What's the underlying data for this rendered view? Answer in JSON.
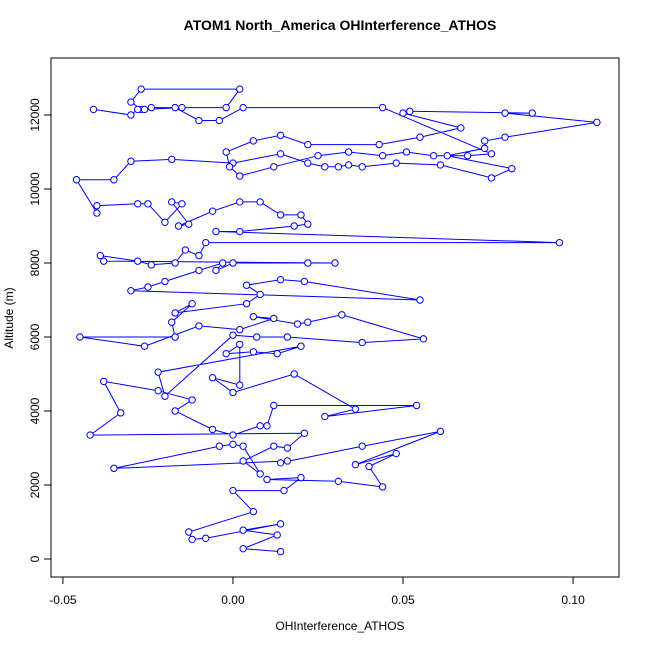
{
  "chart_data": {
    "type": "line",
    "markers": true,
    "title": "ATOM1 North_America OHInterference_ATHOS",
    "x_label": "OHInterference_ATHOS",
    "y_label": "Altitude (m)",
    "color": "#0000ff",
    "xlim": [
      -0.0535,
      0.1135
    ],
    "ylim": [
      -486,
      13540
    ],
    "xticks": [
      -0.05,
      {
        "value": 0,
        "label": "0.00"
      },
      0.05,
      {
        "value": 0.1,
        "label": "0.10"
      }
    ],
    "yticks": [
      0,
      2000,
      4000,
      6000,
      8000,
      10000,
      12000
    ],
    "x": [
      0.014,
      0.003,
      0.013,
      0.003,
      0.014,
      -0.008,
      -0.012,
      -0.013,
      0.006,
      0.0,
      0.015,
      0.02,
      0.01,
      0.031,
      0.044,
      0.04,
      0.048,
      0.036,
      0.061,
      0.038,
      0.014,
      0.016,
      -0.035,
      -0.004,
      0.0,
      0.003,
      0.008,
      0.003,
      0.012,
      0.016,
      0.021,
      -0.042,
      -0.033,
      -0.038,
      -0.022,
      -0.012,
      -0.017,
      -0.006,
      0.0,
      0.008,
      0.01,
      0.012,
      0.054,
      0.027,
      0.036,
      0.018,
      0.0,
      -0.006,
      0.002,
      0.002,
      -0.002,
      0.006,
      0.013,
      0.02,
      -0.022,
      -0.02,
      0.0,
      0.007,
      0.016,
      0.038,
      0.056,
      0.032,
      0.022,
      0.019,
      0.006,
      0.012,
      0.002,
      -0.01,
      -0.026,
      -0.045,
      -0.017,
      -0.018,
      -0.012,
      -0.017,
      0.004,
      0.008,
      0.004,
      0.014,
      0.021,
      0.055,
      -0.03,
      -0.025,
      -0.02,
      -0.01,
      -0.003,
      -0.005,
      0.0,
      0.022,
      0.03,
      -0.038,
      -0.039,
      -0.028,
      -0.024,
      -0.017,
      -0.014,
      -0.01,
      -0.008,
      0.096,
      -0.005,
      0.002,
      0.018,
      0.022,
      0.02,
      0.014,
      0.008,
      0.002,
      -0.006,
      -0.016,
      -0.013,
      -0.018,
      -0.015,
      -0.02,
      -0.025,
      -0.028,
      -0.04,
      -0.04,
      -0.046,
      -0.035,
      -0.03,
      -0.018,
      0.0,
      0.014,
      0.022,
      0.027,
      0.031,
      0.034,
      0.038,
      0.048,
      0.061,
      0.076,
      0.082,
      0.063,
      0.074,
      0.074,
      0.08,
      0.107,
      0.08,
      0.088,
      0.052,
      0.05,
      0.067,
      0.055,
      0.043,
      0.022,
      0.014,
      0.006,
      -0.002,
      -0.001,
      0.002,
      0.012,
      0.025,
      0.034,
      0.044,
      0.051,
      0.059,
      0.069,
      0.076,
      0.044,
      0.003,
      -0.004,
      -0.01,
      -0.017,
      -0.024,
      -0.027,
      -0.03,
      -0.027,
      0.002,
      -0.002,
      -0.015,
      -0.026,
      -0.028,
      -0.03,
      -0.041
    ],
    "values": [
      200,
      280,
      650,
      780,
      950,
      560,
      530,
      730,
      1280,
      1850,
      1850,
      2200,
      2150,
      2100,
      1950,
      2500,
      2850,
      2550,
      3450,
      3050,
      2600,
      2650,
      2450,
      3050,
      3100,
      3050,
      2300,
      2650,
      3050,
      3000,
      3400,
      3350,
      3950,
      4800,
      4550,
      4300,
      4000,
      3500,
      3350,
      3600,
      3600,
      4150,
      4150,
      3850,
      4050,
      5000,
      4500,
      4900,
      4700,
      5800,
      5550,
      5600,
      5550,
      5750,
      5050,
      4400,
      6050,
      6000,
      6000,
      5850,
      5950,
      6600,
      6400,
      6350,
      6550,
      6500,
      6200,
      6300,
      5750,
      6000,
      6000,
      6400,
      6900,
      6650,
      6900,
      7150,
      7400,
      7550,
      7500,
      7000,
      7250,
      7350,
      7500,
      7800,
      8000,
      7800,
      8000,
      8000,
      8000,
      8050,
      8200,
      8050,
      7950,
      8000,
      8350,
      8200,
      8550,
      8550,
      8850,
      8850,
      9000,
      9050,
      9300,
      9300,
      9650,
      9650,
      9400,
      9000,
      9050,
      9650,
      9600,
      9100,
      9600,
      9600,
      9550,
      9350,
      10250,
      10250,
      10750,
      10800,
      10700,
      10950,
      10700,
      10600,
      10600,
      10650,
      10600,
      10700,
      10650,
      10300,
      10550,
      10900,
      11100,
      11300,
      11400,
      11800,
      12050,
      12050,
      12100,
      12050,
      11650,
      11400,
      11200,
      11200,
      11450,
      11300,
      11000,
      10600,
      10350,
      10600,
      10900,
      11000,
      10900,
      11000,
      10900,
      10900,
      10950,
      12200,
      12200,
      11850,
      11850,
      12200,
      12200,
      12150,
      12350,
      12700,
      12700,
      12200,
      12200,
      12150,
      12150,
      12000,
      12150
    ]
  }
}
